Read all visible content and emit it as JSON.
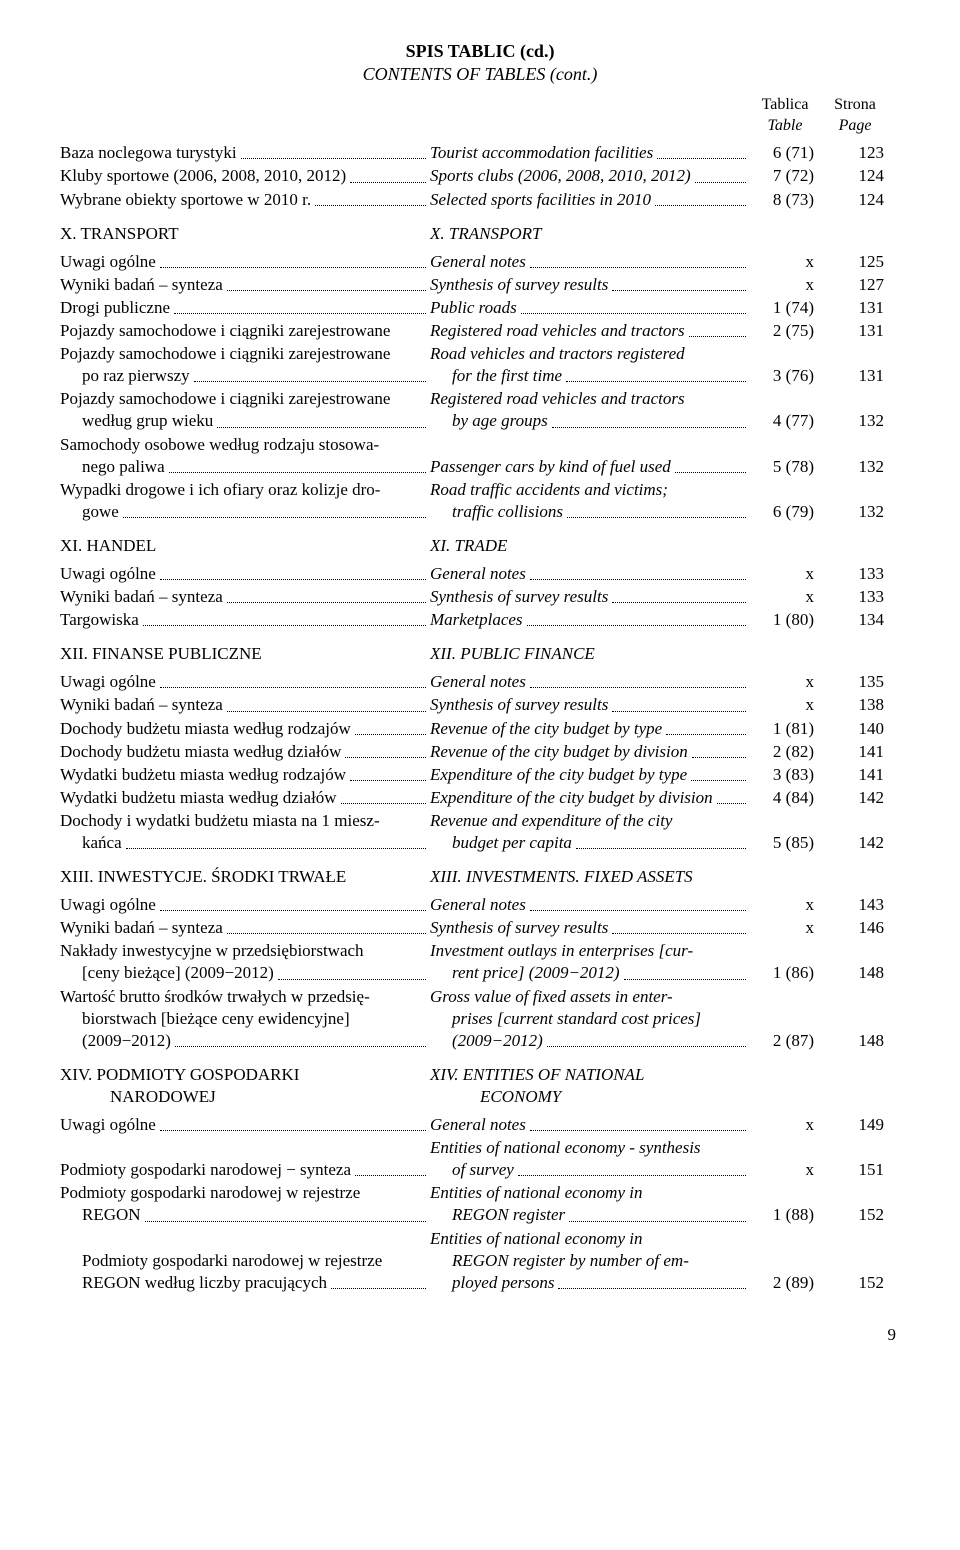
{
  "title": {
    "main": "SPIS TABLIC (cd.)",
    "sub": "CONTENTS OF TABLES (cont.)"
  },
  "header": {
    "tab_pl": "Tablica",
    "tab_en": "Table",
    "page_pl": "Strona",
    "page_en": "Page"
  },
  "sections": [
    {
      "rows": [
        {
          "pl": "Baza noclegowa turystyki",
          "en": "Tourist accommodation facilities",
          "tab": "6 (71)",
          "page": "123"
        },
        {
          "pl": "Kluby sportowe (2006, 2008, 2010, 2012)",
          "en": "Sports clubs (2006, 2008, 2010, 2012)",
          "tab": "7 (72)",
          "page": "124"
        },
        {
          "pl": "Wybrane obiekty sportowe w 2010 r.",
          "en": "Selected sports facilities in 2010",
          "tab": "8 (73)",
          "page": "124"
        }
      ]
    },
    {
      "heading_pl": "X. TRANSPORT",
      "heading_en": "X. TRANSPORT",
      "rows": [
        {
          "pl": "Uwagi ogólne",
          "en": "General notes",
          "tab": "x",
          "page": "125"
        },
        {
          "pl": "Wyniki badań – synteza",
          "en": "Synthesis of survey results",
          "tab": "x",
          "page": "127"
        },
        {
          "pl": "Drogi publiczne",
          "en": "Public roads",
          "tab": "1 (74)",
          "page": "131"
        },
        {
          "pl": "Pojazdy samochodowe i ciągniki zarejestrowane",
          "en": "Registered road vehicles and tractors",
          "tab": "2 (75)",
          "page": "131",
          "no_dots_left": true
        },
        {
          "pl_lines": [
            "Pojazdy samochodowe i ciągniki zarejestrowane",
            "po raz pierwszy"
          ],
          "en_lines": [
            "Road vehicles and tractors registered",
            "for the first time"
          ],
          "tab": "3 (76)",
          "page": "131"
        },
        {
          "pl_lines": [
            "Pojazdy samochodowe i ciągniki zarejestrowane",
            "według grup wieku"
          ],
          "en_lines": [
            "Registered road vehicles and tractors",
            "by age groups"
          ],
          "tab": "4 (77)",
          "page": "132"
        },
        {
          "pl_lines": [
            "Samochody osobowe według rodzaju stosowa-",
            "nego paliwa"
          ],
          "en": "Passenger cars by kind of fuel used",
          "tab": "5 (78)",
          "page": "132"
        },
        {
          "pl_lines": [
            "Wypadki drogowe i ich ofiary oraz kolizje dro-",
            "gowe"
          ],
          "en_lines": [
            "Road traffic accidents and victims;",
            "traffic collisions"
          ],
          "tab": "6 (79)",
          "page": "132"
        }
      ]
    },
    {
      "heading_pl": "XI. HANDEL",
      "heading_en": "XI. TRADE",
      "rows": [
        {
          "pl": "Uwagi ogólne",
          "en": "General notes",
          "tab": "x",
          "page": "133"
        },
        {
          "pl": "Wyniki badań – synteza",
          "en": "Synthesis of survey results",
          "tab": "x",
          "page": "133"
        },
        {
          "pl": "Targowiska",
          "en": "Marketplaces",
          "tab": "1 (80)",
          "page": "134"
        }
      ]
    },
    {
      "heading_pl": "XII. FINANSE PUBLICZNE",
      "heading_en": "XII. PUBLIC FINANCE",
      "rows": [
        {
          "pl": "Uwagi ogólne",
          "en": "General notes",
          "tab": "x",
          "page": "135"
        },
        {
          "pl": "Wyniki badań – synteza",
          "en": "Synthesis of survey results",
          "tab": "x",
          "page": "138"
        },
        {
          "pl": "Dochody budżetu miasta według rodzajów",
          "en": "Revenue of the city budget by type",
          "tab": "1 (81)",
          "page": "140"
        },
        {
          "pl": "Dochody budżetu miasta według działów",
          "en": "Revenue of the city budget by division",
          "tab": "2 (82)",
          "page": "141"
        },
        {
          "pl": "Wydatki budżetu miasta według rodzajów",
          "en": "Expenditure of the city budget by type",
          "tab": "3 (83)",
          "page": "141"
        },
        {
          "pl": "Wydatki budżetu miasta według działów",
          "en": "Expenditure of the city budget by division",
          "tab": "4 (84)",
          "page": "142"
        },
        {
          "pl_lines": [
            "Dochody i wydatki budżetu miasta na 1 miesz-",
            "kańca"
          ],
          "en_lines": [
            "Revenue and expenditure of the city",
            "budget per capita"
          ],
          "tab": "5 (85)",
          "page": "142"
        }
      ]
    },
    {
      "heading_pl": "XIII. INWESTYCJE. ŚRODKI TRWAŁE",
      "heading_en": "XIII. INVESTMENTS. FIXED ASSETS",
      "rows": [
        {
          "pl": "Uwagi ogólne",
          "en": "General notes",
          "tab": "x",
          "page": "143"
        },
        {
          "pl": "Wyniki badań – synteza",
          "en": "Synthesis of survey results",
          "tab": "x",
          "page": "146"
        },
        {
          "pl_lines": [
            "Nakłady inwestycyjne w przedsiębiorstwach",
            "[ceny bieżące] (2009−2012)"
          ],
          "en_lines": [
            "Investment outlays in enterprises [cur-",
            "rent price] (2009−2012)"
          ],
          "tab": "1 (86)",
          "page": "148"
        },
        {
          "pl_lines": [
            "Wartość brutto środków trwałych w przedsię-",
            "biorstwach [bieżące ceny ewidencyjne]",
            "(2009−2012)"
          ],
          "en_lines": [
            "Gross value of fixed assets in enter-",
            "prises [current standard cost prices]",
            "(2009−2012)"
          ],
          "tab": "2 (87)",
          "page": "148"
        }
      ]
    },
    {
      "heading_pl_lines": [
        "XIV. PODMIOTY GOSPODARKI",
        "NARODOWEJ"
      ],
      "heading_en_lines": [
        "XIV. ENTITIES OF NATIONAL",
        "ECONOMY"
      ],
      "rows": [
        {
          "pl": "Uwagi ogólne",
          "en": "General notes",
          "tab": "x",
          "page": "149"
        },
        {
          "pl": "Podmioty gospodarki narodowej − synteza",
          "en_lines": [
            "Entities of national economy - synthesis",
            "of survey"
          ],
          "tab": "x",
          "page": "151",
          "en_first_no_dots": true
        },
        {
          "pl_lines": [
            "Podmioty gospodarki narodowej w rejestrze",
            "REGON"
          ],
          "en_lines": [
            "Entities of national economy in",
            "REGON register"
          ],
          "tab": "1 (88)",
          "page": "152"
        },
        {
          "pl_lines": [
            "Podmioty gospodarki narodowej w rejestrze",
            "REGON według liczby pracujących"
          ],
          "en_lines": [
            "Entities of national economy in",
            "REGON register by number of em-",
            "ployed persons"
          ],
          "tab": "2 (89)",
          "page": "152",
          "pl_blank_before": true
        }
      ]
    }
  ],
  "page_number": "9"
}
